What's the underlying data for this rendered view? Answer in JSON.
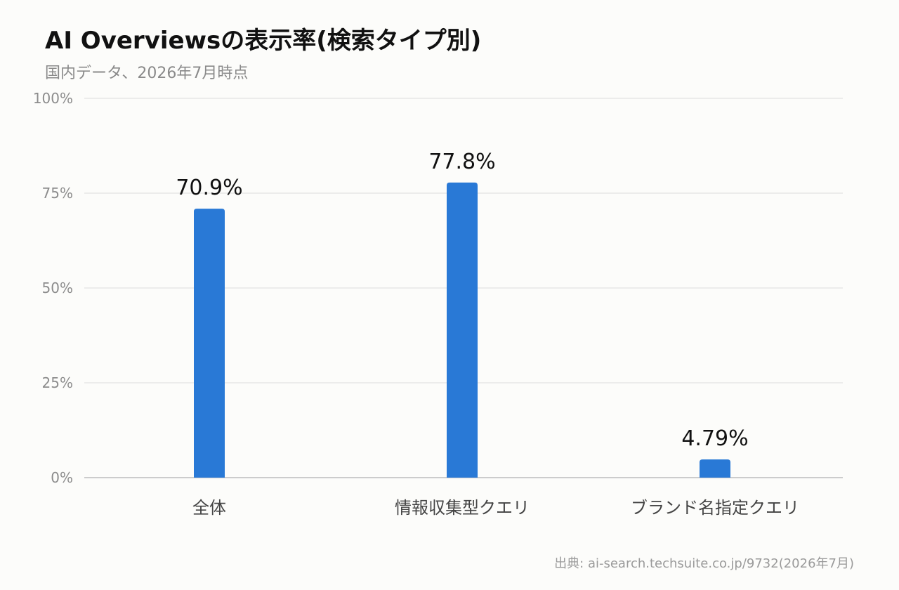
{
  "chart_data": {
    "type": "bar",
    "title": "AI Overviewsの表示率(検索タイプ別)",
    "subtitle": "国内データ、2026年7月時点",
    "source": "出典: ai-search.techsuite.co.jp/9732(2026年7月)",
    "categories": [
      "全体",
      "情報収集型クエリ",
      "ブランド名指定クエリ"
    ],
    "values": [
      70.9,
      77.8,
      4.79
    ],
    "value_labels": [
      "70.9%",
      "77.8%",
      "4.79%"
    ],
    "ylim": [
      0,
      100
    ],
    "yticks": [
      0,
      25,
      50,
      75,
      100
    ],
    "ytick_labels": [
      "0%",
      "25%",
      "50%",
      "75%",
      "100%"
    ],
    "xlabel": "",
    "ylabel": "",
    "grid": true,
    "bar_color": "#2979d6"
  }
}
